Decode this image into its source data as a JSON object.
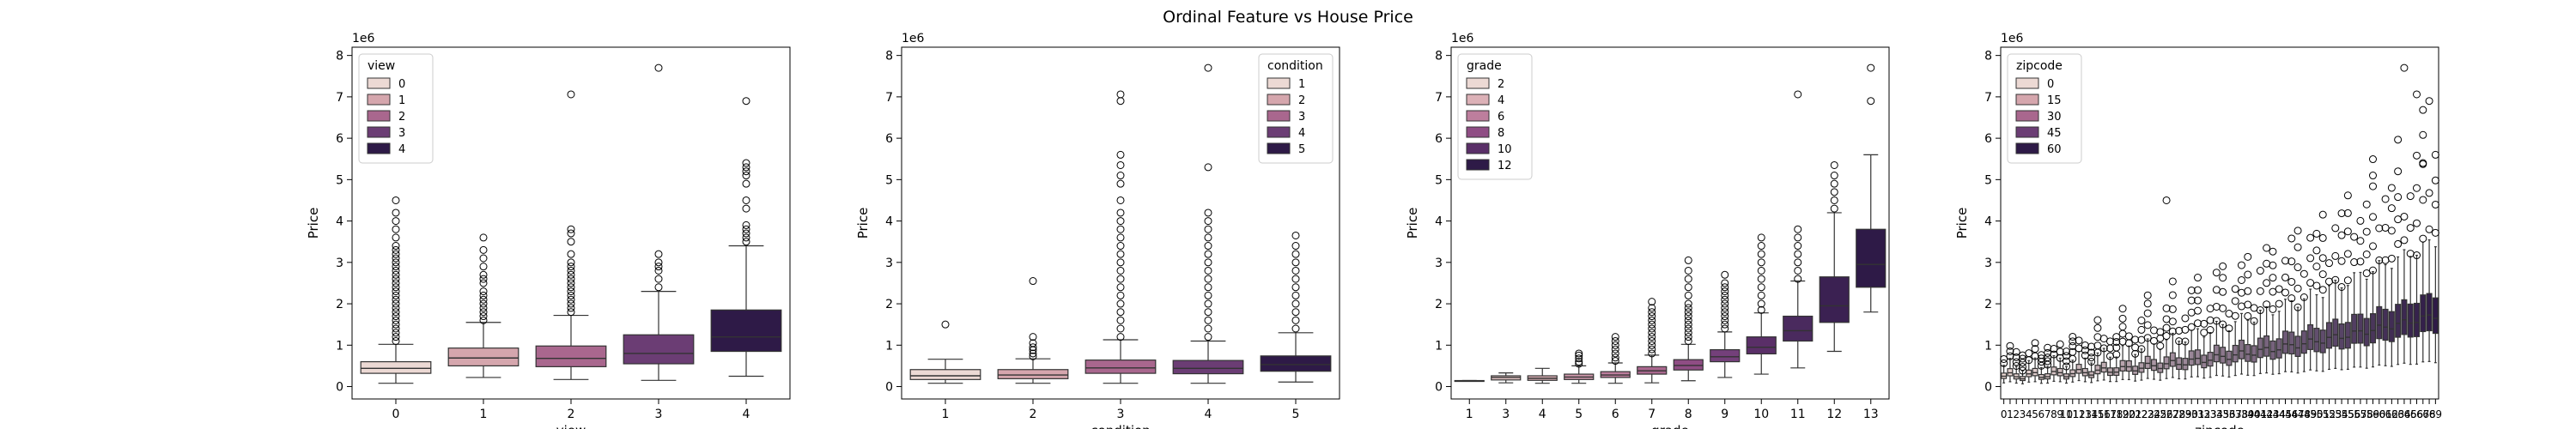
{
  "figure": {
    "suptitle": "Ordinal Feature vs House Price"
  },
  "chart_data": [
    {
      "type": "box",
      "xlabel": "view",
      "ylabel": "Price",
      "y_scale_label": "1e6",
      "ylim": [
        -0.3,
        8.2
      ],
      "yticks": [
        0,
        1,
        2,
        3,
        4,
        5,
        6,
        7,
        8
      ],
      "grid": false,
      "legend": {
        "title": "view",
        "placement": "upper-left",
        "entries": [
          "0",
          "1",
          "2",
          "3",
          "4"
        ],
        "colors": [
          "#ecd9d4",
          "#d5a6ad",
          "#a9678e",
          "#6b3d74",
          "#2e1a47"
        ]
      },
      "categories": [
        "0",
        "1",
        "2",
        "3",
        "4"
      ],
      "colors": [
        "#ecd9d4",
        "#d5a6ad",
        "#a9678e",
        "#6b3d74",
        "#2e1a47"
      ],
      "boxes": [
        {
          "q1": 0.32,
          "med": 0.44,
          "q3": 0.6,
          "whislo": 0.08,
          "whishi": 1.02,
          "outliers": [
            1.1,
            1.2,
            1.3,
            1.4,
            1.5,
            1.6,
            1.7,
            1.8,
            1.9,
            2.0,
            2.1,
            2.2,
            2.3,
            2.4,
            2.5,
            2.6,
            2.7,
            2.8,
            2.9,
            3.0,
            3.1,
            3.2,
            3.3,
            3.4,
            3.6,
            3.8,
            4.0,
            4.2,
            4.5
          ]
        },
        {
          "q1": 0.5,
          "med": 0.69,
          "q3": 0.93,
          "whislo": 0.22,
          "whishi": 1.55,
          "outliers": [
            1.6,
            1.7,
            1.8,
            1.9,
            2.0,
            2.1,
            2.2,
            2.3,
            2.5,
            2.6,
            2.7,
            2.9,
            3.1,
            3.3,
            3.6
          ]
        },
        {
          "q1": 0.48,
          "med": 0.68,
          "q3": 0.98,
          "whislo": 0.17,
          "whishi": 1.72,
          "outliers": [
            1.8,
            1.9,
            2.0,
            2.1,
            2.2,
            2.3,
            2.4,
            2.5,
            2.6,
            2.7,
            2.8,
            2.9,
            3.0,
            3.2,
            3.5,
            3.7,
            3.8,
            7.06
          ]
        },
        {
          "q1": 0.55,
          "med": 0.8,
          "q3": 1.25,
          "whislo": 0.15,
          "whishi": 2.3,
          "outliers": [
            2.4,
            2.6,
            2.8,
            2.9,
            3.0,
            3.2,
            7.7
          ]
        },
        {
          "q1": 0.85,
          "med": 1.2,
          "q3": 1.85,
          "whislo": 0.25,
          "whishi": 3.4,
          "outliers": [
            3.5,
            3.6,
            3.7,
            3.8,
            3.9,
            4.3,
            4.5,
            4.9,
            5.1,
            5.2,
            5.3,
            5.4,
            6.9
          ]
        }
      ]
    },
    {
      "type": "box",
      "xlabel": "condition",
      "ylabel": "Price",
      "y_scale_label": "1e6",
      "ylim": [
        -0.3,
        8.2
      ],
      "yticks": [
        0,
        1,
        2,
        3,
        4,
        5,
        6,
        7,
        8
      ],
      "grid": false,
      "legend": {
        "title": "condition",
        "placement": "upper-right",
        "entries": [
          "1",
          "2",
          "3",
          "4",
          "5"
        ],
        "colors": [
          "#ecd9d4",
          "#d5a6ad",
          "#a9678e",
          "#6b3d74",
          "#2e1a47"
        ]
      },
      "categories": [
        "1",
        "2",
        "3",
        "4",
        "5"
      ],
      "colors": [
        "#ecd9d4",
        "#d5a6ad",
        "#a9678e",
        "#6b3d74",
        "#2e1a47"
      ],
      "boxes": [
        {
          "q1": 0.17,
          "med": 0.26,
          "q3": 0.41,
          "whislo": 0.08,
          "whishi": 0.66,
          "outliers": [
            1.5
          ]
        },
        {
          "q1": 0.19,
          "med": 0.28,
          "q3": 0.41,
          "whislo": 0.08,
          "whishi": 0.67,
          "outliers": [
            0.73,
            0.8,
            0.88,
            0.95,
            1.05,
            1.2,
            2.55
          ]
        },
        {
          "q1": 0.32,
          "med": 0.45,
          "q3": 0.64,
          "whislo": 0.08,
          "whishi": 1.13,
          "outliers": [
            1.2,
            1.4,
            1.6,
            1.8,
            2.0,
            2.2,
            2.4,
            2.6,
            2.8,
            3.0,
            3.2,
            3.4,
            3.6,
            3.8,
            4.0,
            4.2,
            4.5,
            4.9,
            5.1,
            5.35,
            5.6,
            6.9,
            7.06
          ]
        },
        {
          "q1": 0.31,
          "med": 0.44,
          "q3": 0.63,
          "whislo": 0.08,
          "whishi": 1.1,
          "outliers": [
            1.2,
            1.4,
            1.6,
            1.8,
            2.0,
            2.2,
            2.4,
            2.6,
            2.8,
            3.0,
            3.2,
            3.4,
            3.6,
            3.8,
            4.0,
            4.2,
            5.3,
            7.7
          ]
        },
        {
          "q1": 0.37,
          "med": 0.53,
          "q3": 0.74,
          "whislo": 0.11,
          "whishi": 1.3,
          "outliers": [
            1.4,
            1.6,
            1.8,
            2.0,
            2.2,
            2.4,
            2.6,
            2.8,
            3.0,
            3.2,
            3.4,
            3.65
          ]
        }
      ]
    },
    {
      "type": "box",
      "xlabel": "grade",
      "ylabel": "Price",
      "y_scale_label": "1e6",
      "ylim": [
        -0.3,
        8.2
      ],
      "yticks": [
        0,
        1,
        2,
        3,
        4,
        5,
        6,
        7,
        8
      ],
      "grid": false,
      "legend": {
        "title": "grade",
        "placement": "upper-left",
        "entries": [
          "2",
          "4",
          "6",
          "8",
          "10",
          "12"
        ],
        "colors": [
          "#ecd9d4",
          "#dcb1b7",
          "#bd7e9d",
          "#8f4d84",
          "#5a2f68",
          "#2e1a47"
        ]
      },
      "categories": [
        "1",
        "3",
        "4",
        "5",
        "6",
        "7",
        "8",
        "9",
        "10",
        "11",
        "12",
        "13"
      ],
      "colors": [
        "#ecd9d4",
        "#e6c6c6",
        "#dcb1b7",
        "#cd97aa",
        "#bd7e9d",
        "#a9678e",
        "#8f4d84",
        "#74407a",
        "#5a2f68",
        "#4a2a5e",
        "#3b2152",
        "#2e1a47"
      ],
      "boxes": [
        {
          "q1": 0.14,
          "med": 0.142,
          "q3": 0.145,
          "whislo": 0.14,
          "whishi": 0.145,
          "outliers": []
        },
        {
          "q1": 0.16,
          "med": 0.22,
          "q3": 0.26,
          "whislo": 0.09,
          "whishi": 0.33,
          "outliers": []
        },
        {
          "q1": 0.15,
          "med": 0.2,
          "q3": 0.26,
          "whislo": 0.08,
          "whishi": 0.44,
          "outliers": []
        },
        {
          "q1": 0.17,
          "med": 0.23,
          "q3": 0.3,
          "whislo": 0.08,
          "whishi": 0.5,
          "outliers": [
            0.55,
            0.6,
            0.68,
            0.75,
            0.8
          ]
        },
        {
          "q1": 0.22,
          "med": 0.28,
          "q3": 0.36,
          "whislo": 0.08,
          "whishi": 0.57,
          "outliers": [
            0.62,
            0.7,
            0.8,
            0.9,
            1.0,
            1.1,
            1.2
          ]
        },
        {
          "q1": 0.3,
          "med": 0.38,
          "q3": 0.48,
          "whislo": 0.09,
          "whishi": 0.76,
          "outliers": [
            0.8,
            0.9,
            1.0,
            1.1,
            1.2,
            1.3,
            1.4,
            1.5,
            1.6,
            1.7,
            1.8,
            1.9,
            2.05
          ]
        },
        {
          "q1": 0.4,
          "med": 0.51,
          "q3": 0.65,
          "whislo": 0.14,
          "whishi": 1.02,
          "outliers": [
            1.1,
            1.2,
            1.3,
            1.4,
            1.5,
            1.6,
            1.7,
            1.8,
            1.9,
            2.0,
            2.2,
            2.4,
            2.6,
            2.8,
            3.05
          ]
        },
        {
          "q1": 0.6,
          "med": 0.72,
          "q3": 0.89,
          "whislo": 0.22,
          "whishi": 1.32,
          "outliers": [
            1.4,
            1.5,
            1.6,
            1.7,
            1.8,
            1.9,
            2.0,
            2.1,
            2.2,
            2.3,
            2.4,
            2.5,
            2.7
          ]
        },
        {
          "q1": 0.79,
          "med": 0.95,
          "q3": 1.2,
          "whislo": 0.3,
          "whishi": 1.78,
          "outliers": [
            1.85,
            2.0,
            2.2,
            2.4,
            2.6,
            2.8,
            3.0,
            3.2,
            3.4,
            3.6
          ]
        },
        {
          "q1": 1.1,
          "med": 1.35,
          "q3": 1.7,
          "whislo": 0.45,
          "whishi": 2.55,
          "outliers": [
            2.6,
            2.8,
            3.0,
            3.2,
            3.4,
            3.6,
            3.8,
            7.06
          ]
        },
        {
          "q1": 1.55,
          "med": 1.95,
          "q3": 2.65,
          "whislo": 0.85,
          "whishi": 4.2,
          "outliers": [
            4.3,
            4.5,
            4.7,
            4.9,
            5.1,
            5.35
          ]
        },
        {
          "q1": 2.4,
          "med": 2.95,
          "q3": 3.8,
          "whislo": 1.8,
          "whishi": 5.6,
          "outliers": [
            6.9,
            7.7
          ]
        }
      ]
    },
    {
      "type": "box",
      "xlabel": "zipcode",
      "ylabel": "Price",
      "y_scale_label": "1e6",
      "ylim": [
        -0.3,
        8.2
      ],
      "yticks": [
        0,
        1,
        2,
        3,
        4,
        5,
        6,
        7,
        8
      ],
      "grid": false,
      "legend": {
        "title": "zipcode",
        "placement": "upper-left",
        "entries": [
          "0",
          "15",
          "30",
          "45",
          "60"
        ],
        "colors": [
          "#ecd9d4",
          "#d5a6ad",
          "#a9678e",
          "#6b3d74",
          "#2e1a47"
        ]
      },
      "category_count": 70,
      "color_range": [
        "#ecd9d4",
        "#2e1a47"
      ],
      "tick_labels": [
        "0",
        "1",
        "2",
        "3",
        "4",
        "5",
        "6",
        "7",
        "8",
        "9",
        "10",
        "11",
        "12",
        "13",
        "14",
        "15",
        "16",
        "17",
        "18",
        "19",
        "20",
        "21",
        "22",
        "23",
        "24",
        "25",
        "26",
        "27",
        "28",
        "29",
        "30",
        "31",
        "32",
        "33",
        "34",
        "35",
        "36",
        "37",
        "38",
        "39",
        "40",
        "41",
        "42",
        "43",
        "44",
        "45",
        "46",
        "47",
        "48",
        "49",
        "50",
        "51",
        "52",
        "53",
        "54",
        "55",
        "56",
        "57",
        "58",
        "59",
        "60",
        "61",
        "62",
        "63",
        "64",
        "65",
        "66",
        "67",
        "68",
        "69"
      ],
      "median_trend": [
        0.25,
        1.8
      ],
      "top_outliers": [
        [
          26,
          4.5
        ],
        [
          59,
          5.1
        ],
        [
          64,
          7.7
        ],
        [
          66,
          7.06
        ],
        [
          67,
          5.4
        ],
        [
          68,
          6.9
        ],
        [
          69,
          5.6
        ]
      ]
    }
  ]
}
